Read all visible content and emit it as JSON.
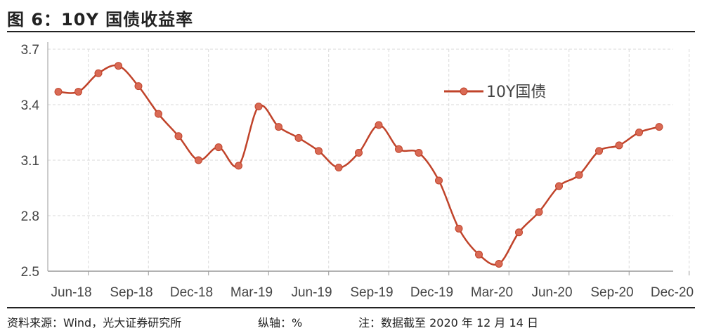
{
  "title": "图 6：10Y 国债收益率",
  "footer": {
    "source": "资料来源：Wind，光大证券研究所",
    "axis_unit": "纵轴：%",
    "note": "注：数据截至 2020 年 12 月 14 日"
  },
  "colors": {
    "series": "#c0432a",
    "grid": "#d9d9d9",
    "axis": "#999999"
  },
  "chart_data": {
    "type": "line",
    "title": "",
    "xlabel": "",
    "ylabel": "",
    "ylim": [
      2.5,
      3.7
    ],
    "yticks": [
      "3.7",
      "3.4",
      "3.1",
      "2.8",
      "2.5"
    ],
    "xticks": [
      "Jun-18",
      "Sep-18",
      "Dec-18",
      "Mar-19",
      "Jun-19",
      "Sep-19",
      "Dec-19",
      "Mar-20",
      "Jun-20",
      "Sep-20",
      "Dec-20"
    ],
    "grid": "dashed",
    "legend_position": "top-right",
    "series": [
      {
        "name": "10Y国债",
        "x": [
          "2018-06",
          "2018-07",
          "2018-08",
          "2018-09",
          "2018-10",
          "2018-11",
          "2018-12",
          "2019-01",
          "2019-02",
          "2019-03",
          "2019-04",
          "2019-05",
          "2019-06",
          "2019-07",
          "2019-08",
          "2019-09",
          "2019-10",
          "2019-11",
          "2019-12",
          "2020-01",
          "2020-02",
          "2020-03",
          "2020-04",
          "2020-05",
          "2020-06",
          "2020-07",
          "2020-08",
          "2020-09",
          "2020-10",
          "2020-11",
          "2020-12"
        ],
        "values": [
          3.47,
          3.47,
          3.57,
          3.61,
          3.5,
          3.35,
          3.23,
          3.1,
          3.17,
          3.07,
          3.39,
          3.28,
          3.22,
          3.15,
          3.06,
          3.14,
          3.29,
          3.16,
          3.14,
          2.99,
          2.73,
          2.59,
          2.54,
          2.71,
          2.82,
          2.96,
          3.02,
          3.15,
          3.18,
          3.25,
          3.28
        ]
      }
    ]
  }
}
